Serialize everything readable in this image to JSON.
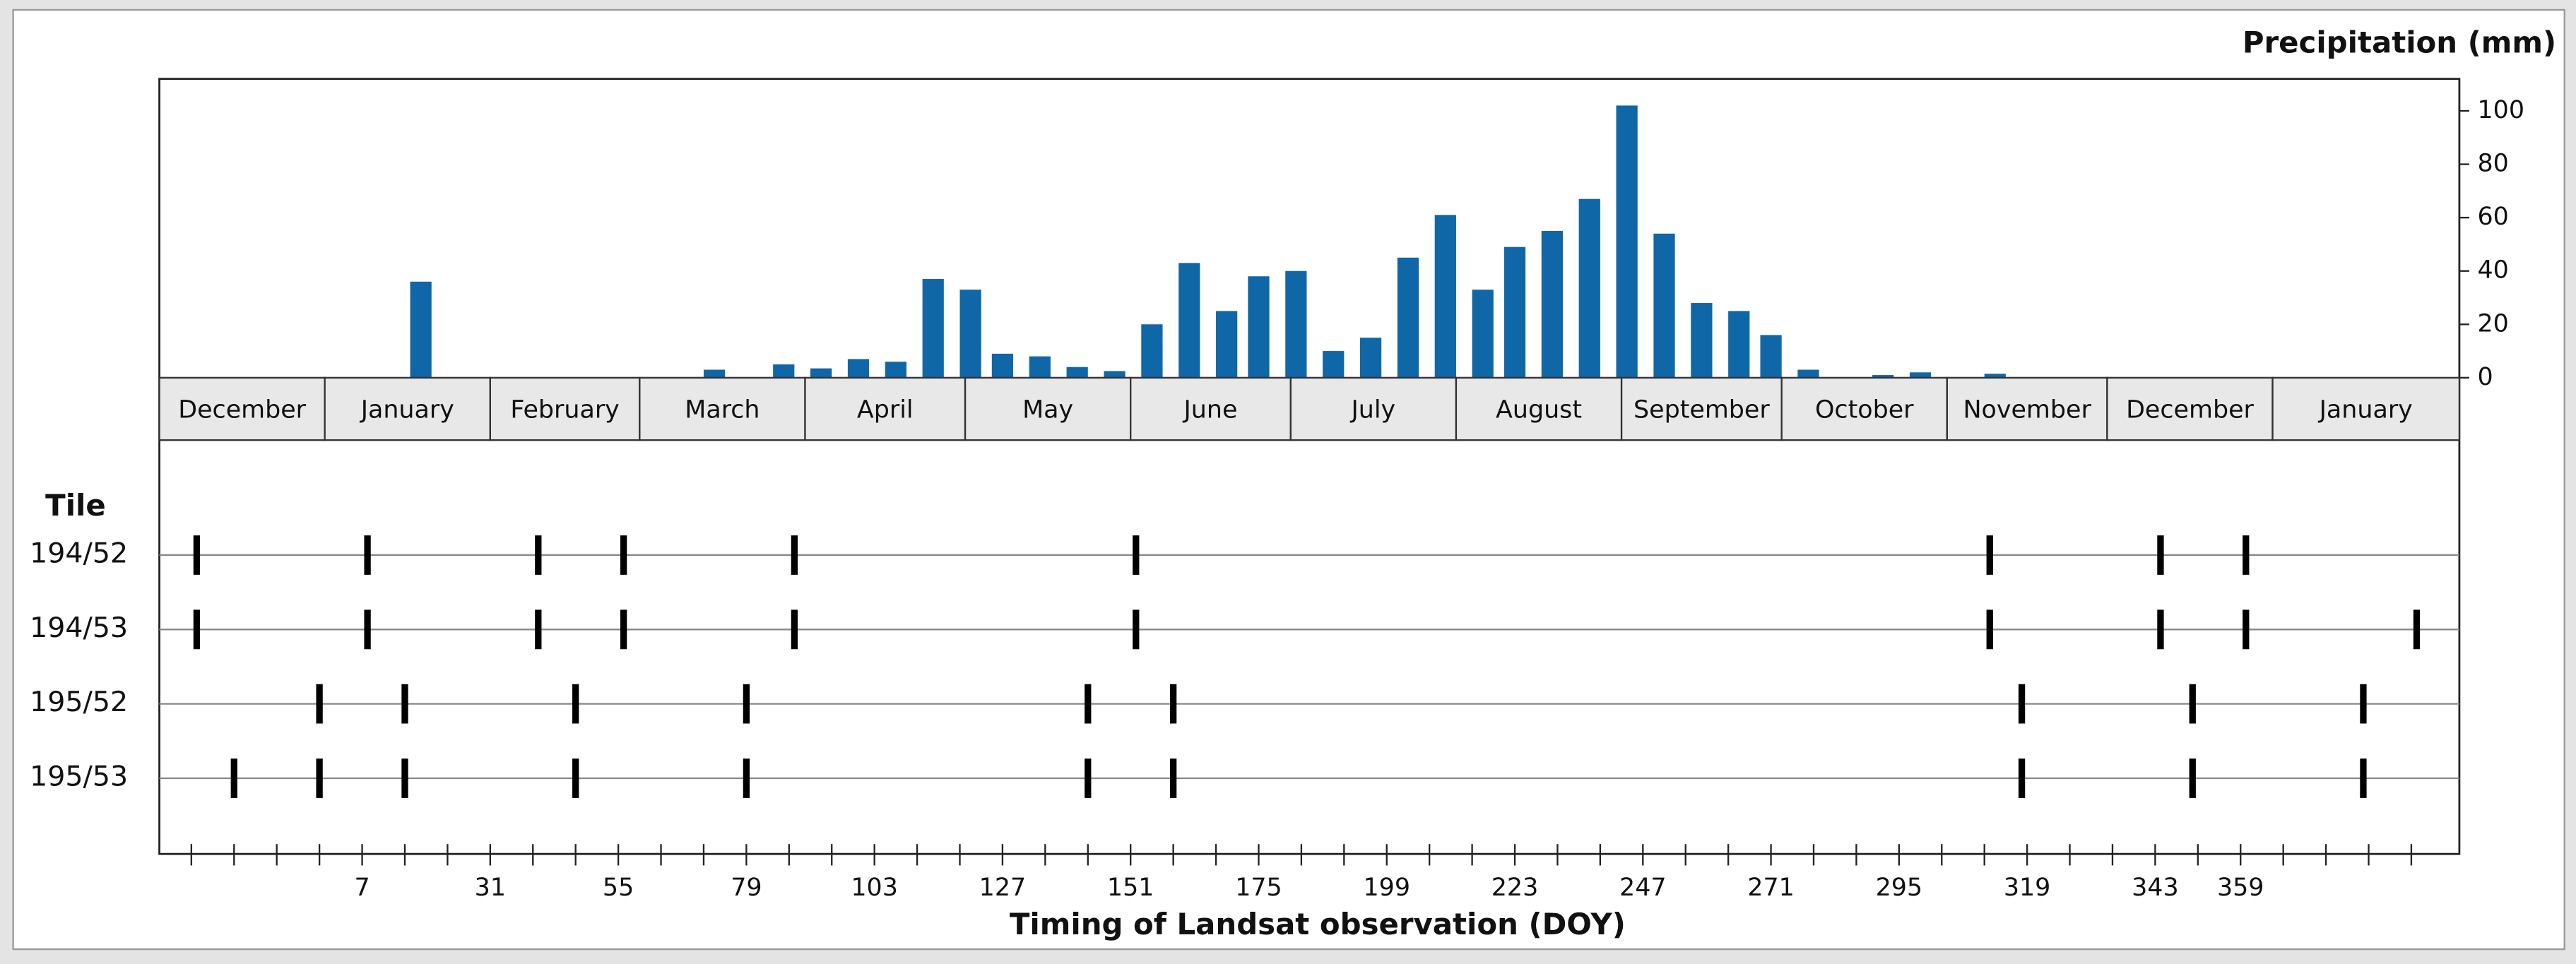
{
  "chart_data": {
    "type": "bar",
    "title": "Precipitation (mm)",
    "x_label": "Timing of Landsat observation (DOY)",
    "xlim": [
      -31,
      400
    ],
    "ylim": [
      0,
      112
    ],
    "yticks": [
      0,
      20,
      40,
      60,
      80,
      100
    ],
    "xticks": [
      7,
      31,
      55,
      79,
      103,
      127,
      151,
      175,
      199,
      223,
      247,
      271,
      295,
      319,
      343,
      359
    ],
    "xminor": [
      -25,
      -17,
      -9,
      -1,
      15,
      23,
      39,
      47,
      63,
      71,
      87,
      95,
      111,
      119,
      135,
      143,
      159,
      167,
      183,
      191,
      207,
      215,
      231,
      239,
      255,
      263,
      279,
      287,
      303,
      311,
      327,
      335,
      351,
      367,
      375,
      383,
      391
    ],
    "months": [
      "December",
      "January",
      "February",
      "March",
      "April",
      "May",
      "June",
      "July",
      "August",
      "September",
      "October",
      "November",
      "December",
      "January"
    ],
    "month_starts": [
      -31,
      0,
      31,
      59,
      90,
      120,
      151,
      181,
      212,
      243,
      273,
      304,
      334,
      365
    ],
    "color": "#0f67a8",
    "x": [
      18,
      73,
      86,
      93,
      100,
      107,
      114,
      121,
      127,
      134,
      141,
      148,
      155,
      162,
      169,
      175,
      182,
      189,
      196,
      203,
      210,
      217,
      223,
      230,
      237,
      244,
      251,
      258,
      265,
      271,
      278,
      292,
      299,
      313
    ],
    "values": [
      36,
      3,
      5,
      3.5,
      7,
      6,
      37,
      33,
      9,
      8,
      4,
      2.5,
      20,
      43,
      25,
      38,
      40,
      10,
      15,
      45,
      61,
      33,
      49,
      55,
      67,
      102,
      54,
      28,
      25,
      16,
      3,
      1,
      2,
      1.5
    ],
    "tile_heading": "Tile",
    "tiles": [
      {
        "name": "194/52",
        "doy": [
          -24,
          8,
          40,
          56,
          88,
          152,
          312,
          344,
          360
        ]
      },
      {
        "name": "194/53",
        "doy": [
          -24,
          8,
          40,
          56,
          88,
          152,
          312,
          344,
          360,
          392
        ]
      },
      {
        "name": "195/52",
        "doy": [
          -1,
          15,
          47,
          79,
          143,
          159,
          318,
          350,
          382
        ]
      },
      {
        "name": "195/53",
        "doy": [
          -17,
          -1,
          15,
          47,
          79,
          143,
          159,
          318,
          350,
          382
        ]
      }
    ]
  }
}
